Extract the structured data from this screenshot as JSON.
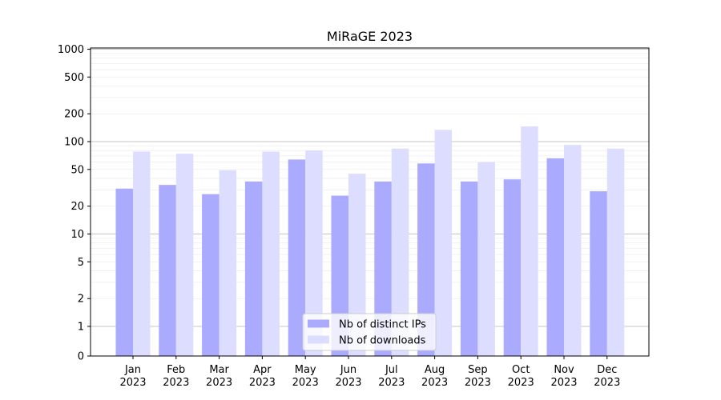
{
  "chart_data": {
    "type": "bar",
    "title": "MiRaGE 2023",
    "xlabel": "",
    "ylabel": "",
    "yscale": "symlog",
    "ylim": [
      0,
      1300
    ],
    "yticks": [
      0,
      1,
      2,
      5,
      10,
      20,
      50,
      100,
      200,
      500,
      1000
    ],
    "ytick_labels": [
      "0",
      "1",
      "2",
      "5",
      "10",
      "20",
      "50",
      "100",
      "200",
      "500",
      "1000"
    ],
    "grid": "horizontal",
    "legend_position": "bottom-center",
    "categories": [
      {
        "month": "Jan",
        "year": "2023"
      },
      {
        "month": "Feb",
        "year": "2023"
      },
      {
        "month": "Mar",
        "year": "2023"
      },
      {
        "month": "Apr",
        "year": "2023"
      },
      {
        "month": "May",
        "year": "2023"
      },
      {
        "month": "Jun",
        "year": "2023"
      },
      {
        "month": "Jul",
        "year": "2023"
      },
      {
        "month": "Aug",
        "year": "2023"
      },
      {
        "month": "Sep",
        "year": "2023"
      },
      {
        "month": "Oct",
        "year": "2023"
      },
      {
        "month": "Nov",
        "year": "2023"
      },
      {
        "month": "Dec",
        "year": "2023"
      }
    ],
    "series": [
      {
        "name": "Nb of distinct IPs",
        "color": "#aaaaff",
        "values": [
          31,
          34,
          27,
          37,
          64,
          26,
          37,
          58,
          37,
          39,
          66,
          29
        ]
      },
      {
        "name": "Nb of downloads",
        "color": "#ddddff",
        "values": [
          78,
          74,
          49,
          78,
          80,
          45,
          84,
          134,
          60,
          146,
          92,
          84
        ]
      }
    ]
  }
}
